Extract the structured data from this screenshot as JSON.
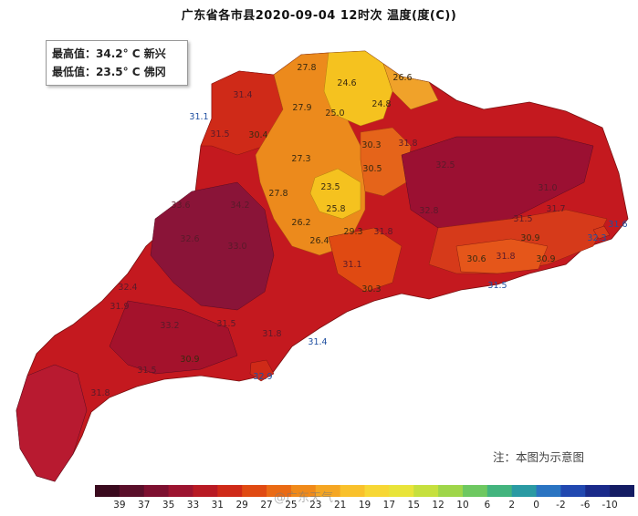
{
  "title": "广东省各市县2020-09-04 12时次 温度(度(C))",
  "stats": {
    "max_label": "最高值：34.2° C 新兴",
    "min_label": "最低值：23.5° C 佛冈"
  },
  "note": "注：本图为示意图",
  "watermark": "@广东天气",
  "legend": {
    "ticks": [
      "39",
      "37",
      "35",
      "33",
      "31",
      "29",
      "27",
      "25",
      "23",
      "21",
      "19",
      "17",
      "15",
      "12",
      "10",
      "6",
      "2",
      "0",
      "-2",
      "-6",
      "-10"
    ],
    "colors": [
      "#3a0a1e",
      "#5a0f2a",
      "#7d1030",
      "#9c1430",
      "#b81a24",
      "#cf2a18",
      "#e04a12",
      "#ea6a14",
      "#f08a1a",
      "#f5a623",
      "#f9c12c",
      "#f7d735",
      "#e9e43a",
      "#c6e03e",
      "#9fd64a",
      "#6ec861",
      "#43b47e",
      "#2a9aa3",
      "#2a74c2",
      "#2148b0",
      "#1a2a8a",
      "#141c63"
    ]
  },
  "map_values": [
    {
      "value": "27.8"
    },
    {
      "value": "24.6"
    },
    {
      "value": "26.6"
    },
    {
      "value": "31.4"
    },
    {
      "value": "27.9"
    },
    {
      "value": "25.0"
    },
    {
      "value": "24.8"
    },
    {
      "value": "31.1"
    },
    {
      "value": "31.5"
    },
    {
      "value": "30.4"
    },
    {
      "value": "30.3"
    },
    {
      "value": "31.8"
    },
    {
      "value": "27.3"
    },
    {
      "value": "30.5"
    },
    {
      "value": "23.5"
    },
    {
      "value": "27.8"
    },
    {
      "value": "25.8"
    },
    {
      "value": "26.2"
    },
    {
      "value": "29.3"
    },
    {
      "value": "31.8"
    },
    {
      "value": "26.4"
    },
    {
      "value": "31.1"
    },
    {
      "value": "30.3"
    },
    {
      "value": "31.0"
    },
    {
      "value": "31.7"
    },
    {
      "value": "31.5"
    },
    {
      "value": "30.9"
    },
    {
      "value": "31.8"
    },
    {
      "value": "30.6"
    },
    {
      "value": "30.9"
    },
    {
      "value": "31.5"
    },
    {
      "value": "31.6"
    },
    {
      "value": "32.3"
    },
    {
      "value": "31.9"
    },
    {
      "value": "31.5"
    },
    {
      "value": "31.8"
    },
    {
      "value": "31.4"
    },
    {
      "value": "30.9"
    },
    {
      "value": "31.5"
    },
    {
      "value": "32.9"
    },
    {
      "value": "31.8"
    },
    {
      "value": "33.6"
    },
    {
      "value": "34.2"
    },
    {
      "value": "32.6"
    },
    {
      "value": "33.0"
    },
    {
      "value": "32.4"
    },
    {
      "value": "33.2"
    },
    {
      "value": "32.8"
    },
    {
      "value": "32.5"
    }
  ]
}
